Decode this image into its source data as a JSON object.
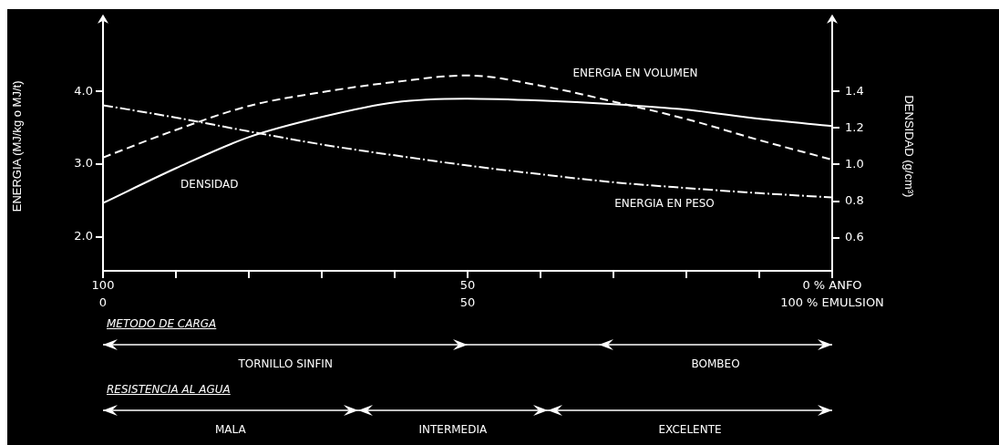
{
  "chart_data": {
    "type": "line",
    "xlabel": null,
    "ylabel": "ENERGIA (MJ/kg o MJ/t)",
    "y2label": "DENSIDAD (g/cm³)",
    "x": [
      0,
      10,
      20,
      30,
      40,
      50,
      60,
      70,
      80,
      90,
      100
    ],
    "series": [
      {
        "name": "ENERGIA EN VOLUMEN",
        "color": "#ffffff",
        "line_style": "dashed",
        "values": [
          3.09,
          3.47,
          3.8,
          3.99,
          4.13,
          4.22,
          4.08,
          3.86,
          3.62,
          3.33,
          3.06
        ]
      },
      {
        "name": "ENERGIA EN PESO",
        "color": "#ffffff",
        "line_style": "dotted",
        "values": [
          3.81,
          3.64,
          3.45,
          3.27,
          3.12,
          2.98,
          2.86,
          2.75,
          2.67,
          2.6,
          2.54
        ]
      },
      {
        "name": "DENSIDAD",
        "color": "#ffffff",
        "line_style": "solid",
        "axis": "y2",
        "values": [
          0.79,
          0.98,
          1.15,
          1.26,
          1.34,
          1.36,
          1.35,
          1.33,
          1.3,
          1.25,
          1.21
        ]
      }
    ],
    "xlim": [
      0,
      100
    ],
    "xticks": [
      0,
      50,
      {
        "value": 100,
        "label": "100 % EMULSION"
      }
    ],
    "x2lim": [
      100,
      0
    ],
    "x2ticks": [
      100,
      {
        "value": 90,
        "label": null
      },
      {
        "value": 80,
        "label": null
      },
      {
        "value": 70,
        "label": null
      },
      {
        "value": 60,
        "label": null
      },
      50,
      {
        "value": 40,
        "label": null
      },
      {
        "value": 30,
        "label": null
      },
      {
        "value": 20,
        "label": null
      },
      {
        "value": 10,
        "label": null
      },
      {
        "value": 0,
        "label": "0 % ANFO"
      }
    ],
    "ylim": [
      1.53,
      4.96
    ],
    "yticks": [
      {
        "value": 2,
        "label": "2.0"
      },
      {
        "value": 3,
        "label": "3.0"
      },
      {
        "value": 4,
        "label": "4.0"
      }
    ],
    "y2lim": [
      0.42,
      1.78
    ],
    "y2ticks": [
      {
        "value": 0.6,
        "label": "0.6"
      },
      {
        "value": 0.8,
        "label": "0.8"
      },
      {
        "value": 1.0,
        "label": "1.0"
      },
      {
        "value": 1.2,
        "label": "1.2"
      },
      {
        "value": 1.4,
        "label": "1.4"
      }
    ],
    "annotations": [
      "METODO DE CARGA",
      "TORNILLO SINFIN",
      "BOMBEO",
      "RESISTENCIA AL AGUA",
      "MALA",
      "INTERMEDIA",
      "EXCELENTE"
    ],
    "grid": false,
    "legend": false,
    "marker": "none"
  }
}
